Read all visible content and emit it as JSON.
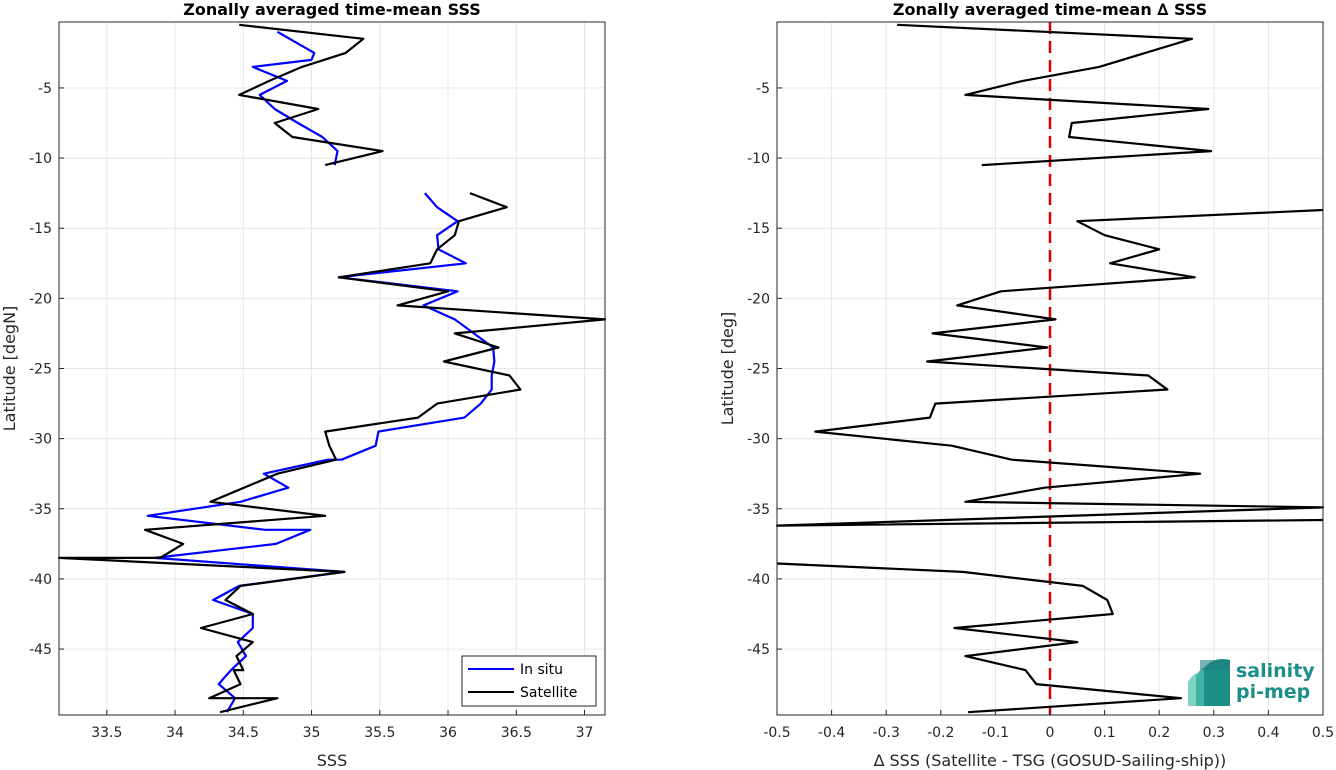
{
  "chart_data": [
    {
      "type": "line",
      "title": "Zonally averaged time-mean SSS",
      "xlabel": "SSS",
      "ylabel": "Latitude [degN]",
      "xlim": [
        33.15,
        37.15
      ],
      "ylim": [
        -49.7,
        -0.3
      ],
      "xticks": [
        33.5,
        34,
        34.5,
        35,
        35.5,
        36,
        36.5,
        37
      ],
      "xtick_labels": [
        "33.5",
        "34",
        "34.5",
        "35",
        "35.5",
        "36",
        "36.5",
        "37"
      ],
      "yticks": [
        -5,
        -10,
        -15,
        -20,
        -25,
        -30,
        -35,
        -40,
        -45
      ],
      "ytick_labels": [
        "-5",
        "-10",
        "-15",
        "-20",
        "-25",
        "-30",
        "-35",
        "-40",
        "-45"
      ],
      "grid": true,
      "legend_position": "bottom-right",
      "series": [
        {
          "name": "In situ",
          "color": "#0000ff",
          "x": [
            34.75,
            35.02,
            35.0,
            34.57,
            34.82,
            34.62,
            34.73,
            34.9,
            35.08,
            35.19,
            35.17
          ],
          "y": [
            -1.0,
            -2.5,
            -3.0,
            -3.5,
            -4.5,
            -5.5,
            -6.5,
            -7.5,
            -8.5,
            -9.5,
            -10.5
          ]
        },
        {
          "name": "Satellite",
          "color": "#000000",
          "x": [
            34.47,
            35.38,
            35.25,
            34.93,
            34.69,
            34.47,
            35.05,
            34.73,
            34.86,
            35.52,
            35.1
          ],
          "y": [
            -0.5,
            -1.5,
            -2.5,
            -3.5,
            -4.5,
            -5.5,
            -6.5,
            -7.5,
            -8.5,
            -9.5,
            -10.5
          ]
        },
        {
          "name": "In situ",
          "color": "#0000ff",
          "x": [
            35.83,
            35.92,
            36.07,
            35.92,
            35.93,
            36.13,
            35.2,
            36.07,
            35.82,
            36.05,
            36.33,
            36.34,
            36.32,
            36.32,
            36.24,
            36.12,
            35.49,
            35.47,
            35.22,
            35.12,
            34.65,
            34.83,
            34.48,
            33.8,
            34.66,
            34.99,
            34.74,
            33.85,
            35.24,
            34.47,
            34.28,
            34.57,
            34.57,
            34.46,
            34.52,
            34.41,
            34.32,
            34.44,
            34.38
          ],
          "y": [
            -12.5,
            -13.5,
            -14.5,
            -15.5,
            -16.5,
            -17.5,
            -18.5,
            -19.5,
            -20.5,
            -21.5,
            -23.5,
            -24.5,
            -25.5,
            -26.5,
            -27.5,
            -28.5,
            -29.5,
            -30.5,
            -31.5,
            -31.5,
            -32.5,
            -33.5,
            -34.5,
            -35.5,
            -36.5,
            -36.5,
            -37.5,
            -38.5,
            -39.5,
            -40.5,
            -41.5,
            -42.5,
            -43.5,
            -44.5,
            -45.5,
            -46.5,
            -47.5,
            -48.5,
            -49.5
          ]
        },
        {
          "name": "Satellite",
          "color": "#000000",
          "x": [
            36.16,
            36.43,
            36.08,
            36.05,
            35.92,
            35.87,
            35.2,
            36.0,
            35.63,
            37.15,
            36.05,
            36.37,
            35.97,
            36.45,
            36.53,
            35.92,
            35.78,
            35.1,
            35.13,
            35.18,
            34.75,
            34.26,
            35.1,
            33.78,
            34.06,
            33.89,
            33.15,
            35.24,
            34.48,
            34.37,
            34.57,
            34.19,
            34.57,
            34.45,
            34.5,
            34.43,
            34.48,
            34.25,
            34.75,
            34.33
          ],
          "y": [
            -12.5,
            -13.5,
            -14.5,
            -15.5,
            -16.5,
            -17.5,
            -18.5,
            -19.5,
            -20.5,
            -21.5,
            -22.5,
            -23.5,
            -24.5,
            -25.5,
            -26.5,
            -27.5,
            -28.5,
            -29.5,
            -30.5,
            -31.5,
            -32.5,
            -34.5,
            -35.5,
            -36.5,
            -37.5,
            -38.5,
            -38.5,
            -39.5,
            -40.5,
            -41.5,
            -42.5,
            -43.5,
            -44.5,
            -45.5,
            -46.5,
            -46.5,
            -47.5,
            -48.5,
            -48.5,
            -49.5
          ]
        }
      ],
      "legend": [
        "In situ",
        "Satellite"
      ]
    },
    {
      "type": "line",
      "title": "Zonally averaged time-mean ∆ SSS",
      "xlabel": "∆ SSS (Satellite - TSG (GOSUD-Sailing-ship))",
      "ylabel": "Latitude [deg]",
      "xlim": [
        -0.5,
        0.5
      ],
      "ylim": [
        -49.7,
        -0.3
      ],
      "xticks": [
        -0.5,
        -0.4,
        -0.3,
        -0.2,
        -0.1,
        0,
        0.1,
        0.2,
        0.3,
        0.4,
        0.5
      ],
      "xtick_labels": [
        "-0.5",
        "-0.4",
        "-0.3",
        "-0.2",
        "-0.1",
        "0",
        "0.1",
        "0.2",
        "0.3",
        "0.4",
        "0.5"
      ],
      "yticks": [
        -5,
        -10,
        -15,
        -20,
        -25,
        -30,
        -35,
        -40,
        -45
      ],
      "ytick_labels": [
        "-5",
        "-10",
        "-15",
        "-20",
        "-25",
        "-30",
        "-35",
        "-40",
        "-45"
      ],
      "grid": true,
      "zero_line": {
        "x": 0,
        "color": "#dd0000",
        "style": "dashed"
      },
      "series": [
        {
          "color": "#000000",
          "x": [
            -0.28,
            0.26,
            0.09,
            -0.05,
            -0.155,
            0.29,
            0.04,
            0.035,
            0.295,
            -0.125
          ],
          "y": [
            -0.5,
            -1.5,
            -3.5,
            -4.5,
            -5.5,
            -6.5,
            -7.5,
            -8.5,
            -9.5,
            -10.5
          ]
        },
        {
          "color": "#000000",
          "x": [
            0.5,
            0.05,
            0.1,
            0.2,
            0.11,
            0.265,
            -0.09,
            -0.17,
            0.01,
            -0.215,
            -0.005,
            -0.225,
            0.18,
            0.215,
            -0.21,
            -0.22,
            -0.43,
            -0.18,
            -0.07,
            0.275,
            -0.01,
            -0.155,
            0.5,
            -0.5,
            0.5
          ],
          "y": [
            -13.7,
            -14.5,
            -15.5,
            -16.5,
            -17.5,
            -18.5,
            -19.5,
            -20.5,
            -21.5,
            -22.5,
            -23.5,
            -24.5,
            -25.5,
            -26.5,
            -27.5,
            -28.5,
            -29.5,
            -30.5,
            -31.5,
            -32.5,
            -33.5,
            -34.5,
            -34.9,
            -36.2,
            -35.8
          ]
        },
        {
          "color": "#000000",
          "x": [
            -0.5,
            -0.16,
            0.06,
            0.105,
            0.115,
            -0.175,
            0.05,
            -0.155,
            -0.045,
            -0.025,
            0.24,
            -0.15
          ],
          "y": [
            -38.9,
            -39.5,
            -40.5,
            -41.5,
            -42.5,
            -43.5,
            -44.5,
            -45.5,
            -46.5,
            -47.5,
            -48.5,
            -49.5
          ]
        }
      ]
    }
  ],
  "logo": {
    "line1": "salinity",
    "line2": "pi-mep"
  }
}
